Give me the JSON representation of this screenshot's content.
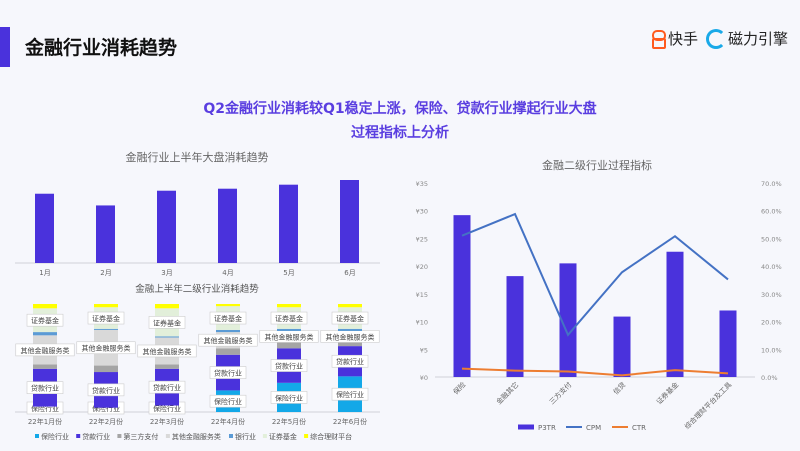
{
  "header": {
    "title": "金融行业消耗趋势",
    "logo_kuaishou": "快手",
    "logo_cili": "磁力引擎"
  },
  "subtitle": {
    "line1": "Q2金融行业消耗较Q1稳定上涨，保险、贷款行业撑起行业大盘",
    "line2": "过程指标上分析"
  },
  "colors": {
    "accent": "#4a32dc",
    "bar": "#4a32dc",
    "cpm": "#4472c4",
    "ctr": "#ed7d31"
  },
  "chart_data": [
    {
      "type": "bar",
      "title": "金融行业上半年大盘消耗趋势",
      "categories": [
        "1月",
        "2月",
        "3月",
        "4月",
        "5月",
        "6月"
      ],
      "values": [
        207,
        172,
        216,
        222,
        234,
        248
      ],
      "grid": false
    },
    {
      "type": "bar",
      "stacked": true,
      "title": "金融上半年二级行业消耗趋势",
      "categories": [
        "22年1月份",
        "22年2月份",
        "22年3月份",
        "22年4月份",
        "22年5月份",
        "22年6月份"
      ],
      "legend_position": "bottom",
      "series": [
        {
          "name": "保险行业",
          "color": "#13a8e8",
          "values": [
            5,
            4,
            6,
            20,
            27,
            33
          ],
          "label": "保险行业"
        },
        {
          "name": "贷款行业",
          "color": "#4a32dc",
          "values": [
            35,
            33,
            34,
            33,
            32,
            28
          ],
          "label": "贷款行业"
        },
        {
          "name": "第三方支付",
          "color": "#a5a5a5",
          "values": [
            4,
            6,
            4,
            6,
            6,
            4
          ]
        },
        {
          "name": "其他金融服务类",
          "color": "#d9d9d9",
          "values": [
            27,
            33,
            25,
            15,
            10,
            10
          ],
          "label": "其他金融服务类"
        },
        {
          "name": "银行业",
          "color": "#5b9bd5",
          "values": [
            3,
            1,
            1,
            2,
            2,
            2
          ]
        },
        {
          "name": "证券基金",
          "color": "#e2efda",
          "values": [
            22,
            20,
            26,
            22,
            20,
            20
          ],
          "label": "证券基金"
        },
        {
          "name": "综合理财平台",
          "color": "#ffff00",
          "values": [
            4,
            3,
            4,
            2,
            3,
            3
          ]
        }
      ]
    },
    {
      "type": "bar+line",
      "title": "金融二级行业过程指标",
      "categories": [
        "保险",
        "金融其它",
        "三方支付",
        "信贷",
        "证券基金",
        "综合理财平台及工具"
      ],
      "y_left": {
        "ticks": [
          "¥0",
          "¥5",
          "¥10",
          "¥15",
          "¥20",
          "¥25",
          "¥30",
          "¥35"
        ],
        "range": [
          0,
          35
        ]
      },
      "y_right": {
        "ticks": [
          "0.0%",
          "10.0%",
          "20.0%",
          "30.0%",
          "40.0%",
          "50.0%",
          "60.0%",
          "70.0%"
        ],
        "range": [
          0,
          70
        ]
      },
      "legend_position": "bottom",
      "series": [
        {
          "name": "P3TR",
          "kind": "bar",
          "axis": "left",
          "values": [
            29.2,
            18.2,
            20.5,
            10.9,
            22.6,
            12.0
          ]
        },
        {
          "name": "CPM",
          "kind": "line",
          "axis": "left",
          "values": [
            25.5,
            29.4,
            7.6,
            18.9,
            25.4,
            17.6
          ]
        },
        {
          "name": "CTR",
          "kind": "line",
          "axis": "right",
          "values": [
            3.0,
            2.3,
            2.0,
            0.6,
            2.5,
            1.3
          ]
        }
      ]
    }
  ]
}
